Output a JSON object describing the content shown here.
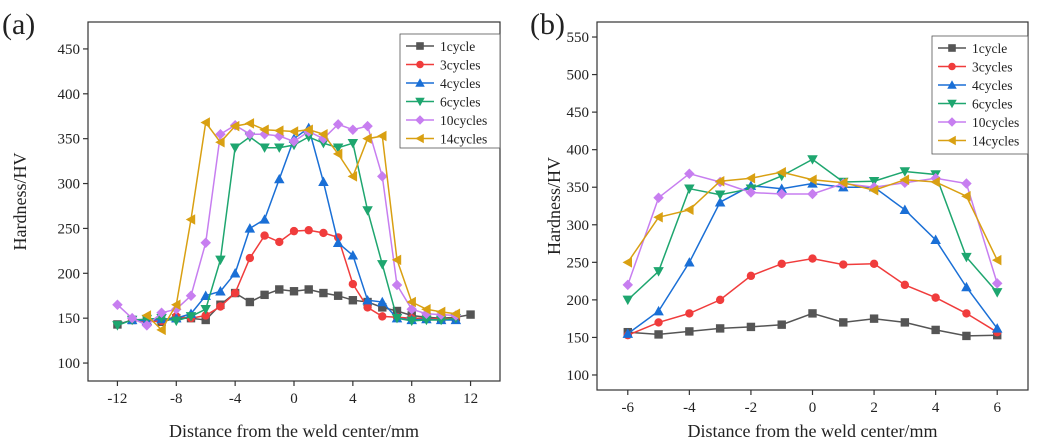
{
  "chart_data": [
    {
      "type": "line",
      "panel_label": "(a)",
      "xlabel": "Distance from the weld center/mm",
      "ylabel": "Hardness/HV",
      "xlim": [
        -14,
        14
      ],
      "ylim": [
        80,
        480
      ],
      "xticks": [
        -12,
        -8,
        -4,
        0,
        4,
        8,
        12
      ],
      "yticks": [
        100,
        150,
        200,
        250,
        300,
        350,
        400,
        450
      ],
      "grid": false,
      "legend_position": "top-right",
      "series": [
        {
          "name": "1cycle",
          "color": "#555555",
          "marker": "square",
          "x": [
            -12,
            -11,
            -10,
            -9,
            -8,
            -7,
            -6,
            -5,
            -4,
            -3,
            -2,
            -1,
            0,
            1,
            2,
            3,
            4,
            5,
            6,
            7,
            8,
            9,
            10,
            11,
            12
          ],
          "y": [
            143,
            148,
            147,
            146,
            150,
            150,
            148,
            165,
            178,
            168,
            176,
            182,
            180,
            182,
            178,
            175,
            170,
            168,
            162,
            158,
            153,
            151,
            150,
            151,
            154
          ]
        },
        {
          "name": "3cycles",
          "color": "#f03c3c",
          "marker": "circle",
          "x": [
            -11,
            -10,
            -9,
            -8,
            -7,
            -6,
            -5,
            -4,
            -3,
            -2,
            -1,
            0,
            1,
            2,
            3,
            4,
            5,
            6,
            7,
            8,
            9,
            10,
            11
          ],
          "y": [
            148,
            146,
            147,
            152,
            150,
            153,
            163,
            178,
            217,
            242,
            235,
            247,
            248,
            245,
            240,
            188,
            162,
            152,
            151,
            150,
            150,
            149,
            150
          ]
        },
        {
          "name": "4cycles",
          "color": "#1a6fd6",
          "marker": "triangle-up",
          "x": [
            -11,
            -10,
            -9,
            -8,
            -7,
            -6,
            -5,
            -4,
            -3,
            -2,
            -1,
            0,
            1,
            2,
            3,
            4,
            5,
            6,
            7,
            8,
            9,
            10,
            11
          ],
          "y": [
            148,
            147,
            149,
            150,
            155,
            175,
            180,
            200,
            250,
            260,
            305,
            350,
            362,
            302,
            234,
            220,
            170,
            168,
            150,
            148,
            149,
            148,
            148
          ]
        },
        {
          "name": "6cycles",
          "color": "#1ea66f",
          "marker": "triangle-down",
          "x": [
            -12,
            -11,
            -10,
            -9,
            -8,
            -7,
            -6,
            -5,
            -4,
            -3,
            -2,
            -1,
            0,
            1,
            2,
            3,
            4,
            5,
            6,
            7,
            8,
            9,
            10,
            11
          ],
          "y": [
            142,
            148,
            149,
            150,
            147,
            152,
            160,
            215,
            340,
            352,
            340,
            340,
            343,
            352,
            345,
            340,
            345,
            270,
            210,
            150,
            147,
            148,
            148,
            150
          ]
        },
        {
          "name": "10cycles",
          "color": "#c77ef0",
          "marker": "diamond",
          "x": [
            -12,
            -11,
            -10,
            -9,
            -8,
            -7,
            -6,
            -5,
            -4,
            -3,
            -2,
            -1,
            0,
            1,
            2,
            3,
            4,
            5,
            6,
            7,
            8,
            9,
            10,
            11
          ],
          "y": [
            165,
            150,
            142,
            156,
            160,
            175,
            234,
            355,
            365,
            355,
            355,
            353,
            347,
            358,
            350,
            366,
            360,
            364,
            308,
            187,
            160,
            155,
            154,
            153
          ]
        },
        {
          "name": "14cycles",
          "color": "#d9a012",
          "marker": "triangle-left",
          "x": [
            -10,
            -9,
            -8,
            -7,
            -6,
            -5,
            -4,
            -3,
            -2,
            -1,
            0,
            1,
            2,
            3,
            4,
            5,
            6,
            7,
            8,
            9,
            10,
            11
          ],
          "y": [
            153,
            137,
            165,
            260,
            368,
            346,
            364,
            367,
            360,
            359,
            358,
            360,
            355,
            333,
            308,
            350,
            353,
            215,
            168,
            160,
            157,
            155
          ]
        }
      ]
    },
    {
      "type": "line",
      "panel_label": "(b)",
      "xlabel": "Distance from the weld center/mm",
      "ylabel": "Hardness/HV",
      "xlim": [
        -7,
        7
      ],
      "ylim": [
        80,
        570
      ],
      "xticks": [
        -6,
        -4,
        -2,
        0,
        2,
        4,
        6
      ],
      "yticks": [
        100,
        150,
        200,
        250,
        300,
        350,
        400,
        450,
        500,
        550
      ],
      "grid": false,
      "legend_position": "top-right",
      "series": [
        {
          "name": "1cycle",
          "color": "#555555",
          "marker": "square",
          "x": [
            -6,
            -5,
            -4,
            -3,
            -2,
            -1,
            0,
            1,
            2,
            3,
            4,
            5,
            6
          ],
          "y": [
            157,
            154,
            158,
            162,
            164,
            167,
            182,
            170,
            175,
            170,
            160,
            152,
            153
          ]
        },
        {
          "name": "3cycles",
          "color": "#f03c3c",
          "marker": "circle",
          "x": [
            -6,
            -5,
            -4,
            -3,
            -2,
            -1,
            0,
            1,
            2,
            3,
            4,
            5,
            6
          ],
          "y": [
            153,
            170,
            182,
            200,
            232,
            248,
            255,
            247,
            248,
            220,
            203,
            182,
            157
          ]
        },
        {
          "name": "4cycles",
          "color": "#1a6fd6",
          "marker": "triangle-up",
          "x": [
            -6,
            -5,
            -4,
            -3,
            -2,
            -1,
            0,
            1,
            2,
            3,
            4,
            5,
            6
          ],
          "y": [
            155,
            185,
            250,
            330,
            352,
            348,
            355,
            350,
            350,
            320,
            280,
            217,
            162
          ]
        },
        {
          "name": "6cycles",
          "color": "#1ea66f",
          "marker": "triangle-down",
          "x": [
            -6,
            -5,
            -4,
            -3,
            -2,
            -1,
            0,
            1,
            2,
            3,
            4,
            5,
            6
          ],
          "y": [
            200,
            238,
            348,
            340,
            348,
            365,
            387,
            357,
            358,
            371,
            367,
            257,
            210
          ]
        },
        {
          "name": "10cycles",
          "color": "#c77ef0",
          "marker": "diamond",
          "x": [
            -6,
            -5,
            -4,
            -3,
            -2,
            -1,
            0,
            1,
            2,
            3,
            4,
            5,
            6
          ],
          "y": [
            220,
            336,
            368,
            357,
            343,
            341,
            341,
            355,
            350,
            356,
            362,
            355,
            222
          ]
        },
        {
          "name": "14cycles",
          "color": "#d9a012",
          "marker": "triangle-left",
          "x": [
            -6,
            -5,
            -4,
            -3,
            -2,
            -1,
            0,
            1,
            2,
            3,
            4,
            5,
            6
          ],
          "y": [
            250,
            310,
            320,
            358,
            362,
            370,
            360,
            356,
            346,
            360,
            357,
            338,
            253
          ]
        }
      ]
    }
  ]
}
